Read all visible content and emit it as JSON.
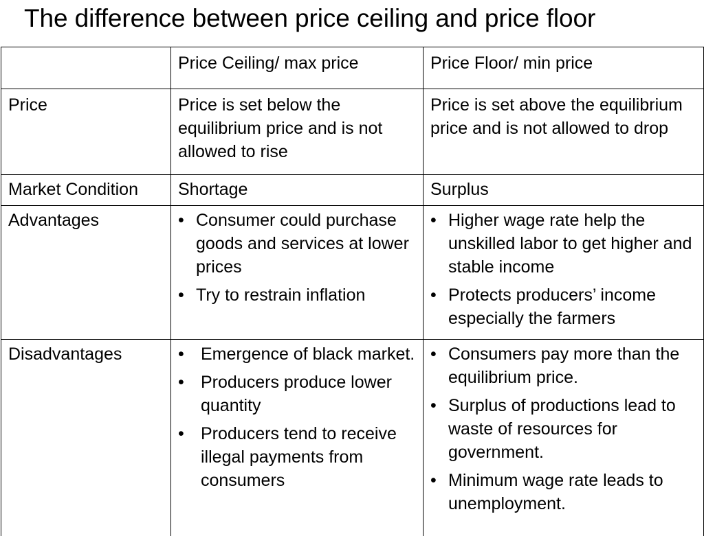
{
  "title": "The difference between price ceiling and price floor",
  "table": {
    "header": {
      "empty": "",
      "ceiling": "Price Ceiling/ max price",
      "floor": "Price Floor/ min price"
    },
    "rows": {
      "price": {
        "label": "Price",
        "ceiling": "Price is set below the equilibrium price and is not allowed to rise",
        "floor": "Price is set above the equilibrium price and is not allowed to drop"
      },
      "market": {
        "label": "Market Condition",
        "ceiling": "Shortage",
        "floor": "Surplus"
      },
      "advantages": {
        "label": "Advantages",
        "ceiling": [
          "Consumer could purchase goods and services at lower prices",
          "Try to restrain inflation"
        ],
        "floor": [
          "Higher wage rate help the unskilled labor to get higher and stable income",
          "Protects producers’ income especially the farmers"
        ]
      },
      "disadvantages": {
        "label": "Disadvantages",
        "ceiling": [
          "Emergence of black market.",
          "Producers produce lower quantity",
          "Producers tend to receive illegal payments from consumers"
        ],
        "floor": [
          "Consumers pay more than the equilibrium price.",
          "Surplus of productions lead to waste of  resources for government.",
          "Minimum wage rate leads to unemployment."
        ]
      }
    },
    "bullet_symbol": "•"
  }
}
